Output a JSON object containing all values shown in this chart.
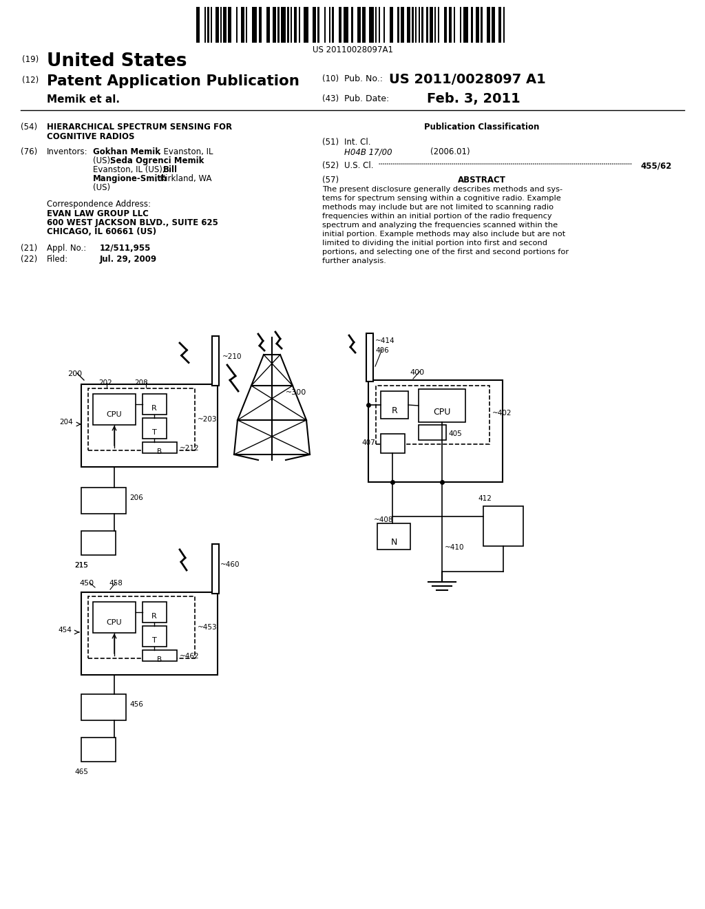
{
  "bg_color": "#ffffff",
  "patent_number": "US 20110028097A1",
  "pub_no_label": "(10) Pub. No.:",
  "pub_no_value": "US 2011/0028097 A1",
  "pub_date_label": "(43) Pub. Date:",
  "pub_date_value": "Feb. 3, 2011",
  "applicant": "Memik et al.",
  "title_54": "HIERARCHICAL SPECTRUM SENSING FOR",
  "title_54b": "COGNITIVE RADIOS",
  "inventors_label": "Inventors:",
  "inventors": [
    [
      "Gokhan Memik",
      ", Evanston, IL"
    ],
    [
      "(US); Seda Ogrenci Memik",
      ""
    ],
    [
      "Evanston, IL (US); Bill",
      ""
    ],
    [
      "Mangione-Smith",
      ", Kirkland, WA"
    ],
    [
      "(US)",
      ""
    ]
  ],
  "correspondence": [
    "Correspondence Address:",
    "EVAN LAW GROUP LLC",
    "600 WEST JACKSON BLVD., SUITE 625",
    "CHICAGO, IL 60661 (US)"
  ],
  "appl_no": "12/511,955",
  "filed": "Jul. 29, 2009",
  "pub_class_title": "Publication Classification",
  "int_cl_label": "Int. Cl.",
  "int_cl_value": "H04B 17/00",
  "int_cl_year": "(2006.01)",
  "us_cl_label": "U.S. Cl.",
  "us_cl_value": "455/62",
  "abstract_title": "ABSTRACT",
  "abstract_lines": [
    "The present disclosure generally describes methods and sys-",
    "tems for spectrum sensing within a cognitive radio. Example",
    "methods may include but are not limited to scanning radio",
    "frequencies within an initial portion of the radio frequency",
    "spectrum and analyzing the frequencies scanned within the",
    "initial portion. Example methods may also include but are not",
    "limited to dividing the initial portion into first and second",
    "portions, and selecting one of the first and second portions for",
    "further analysis."
  ]
}
